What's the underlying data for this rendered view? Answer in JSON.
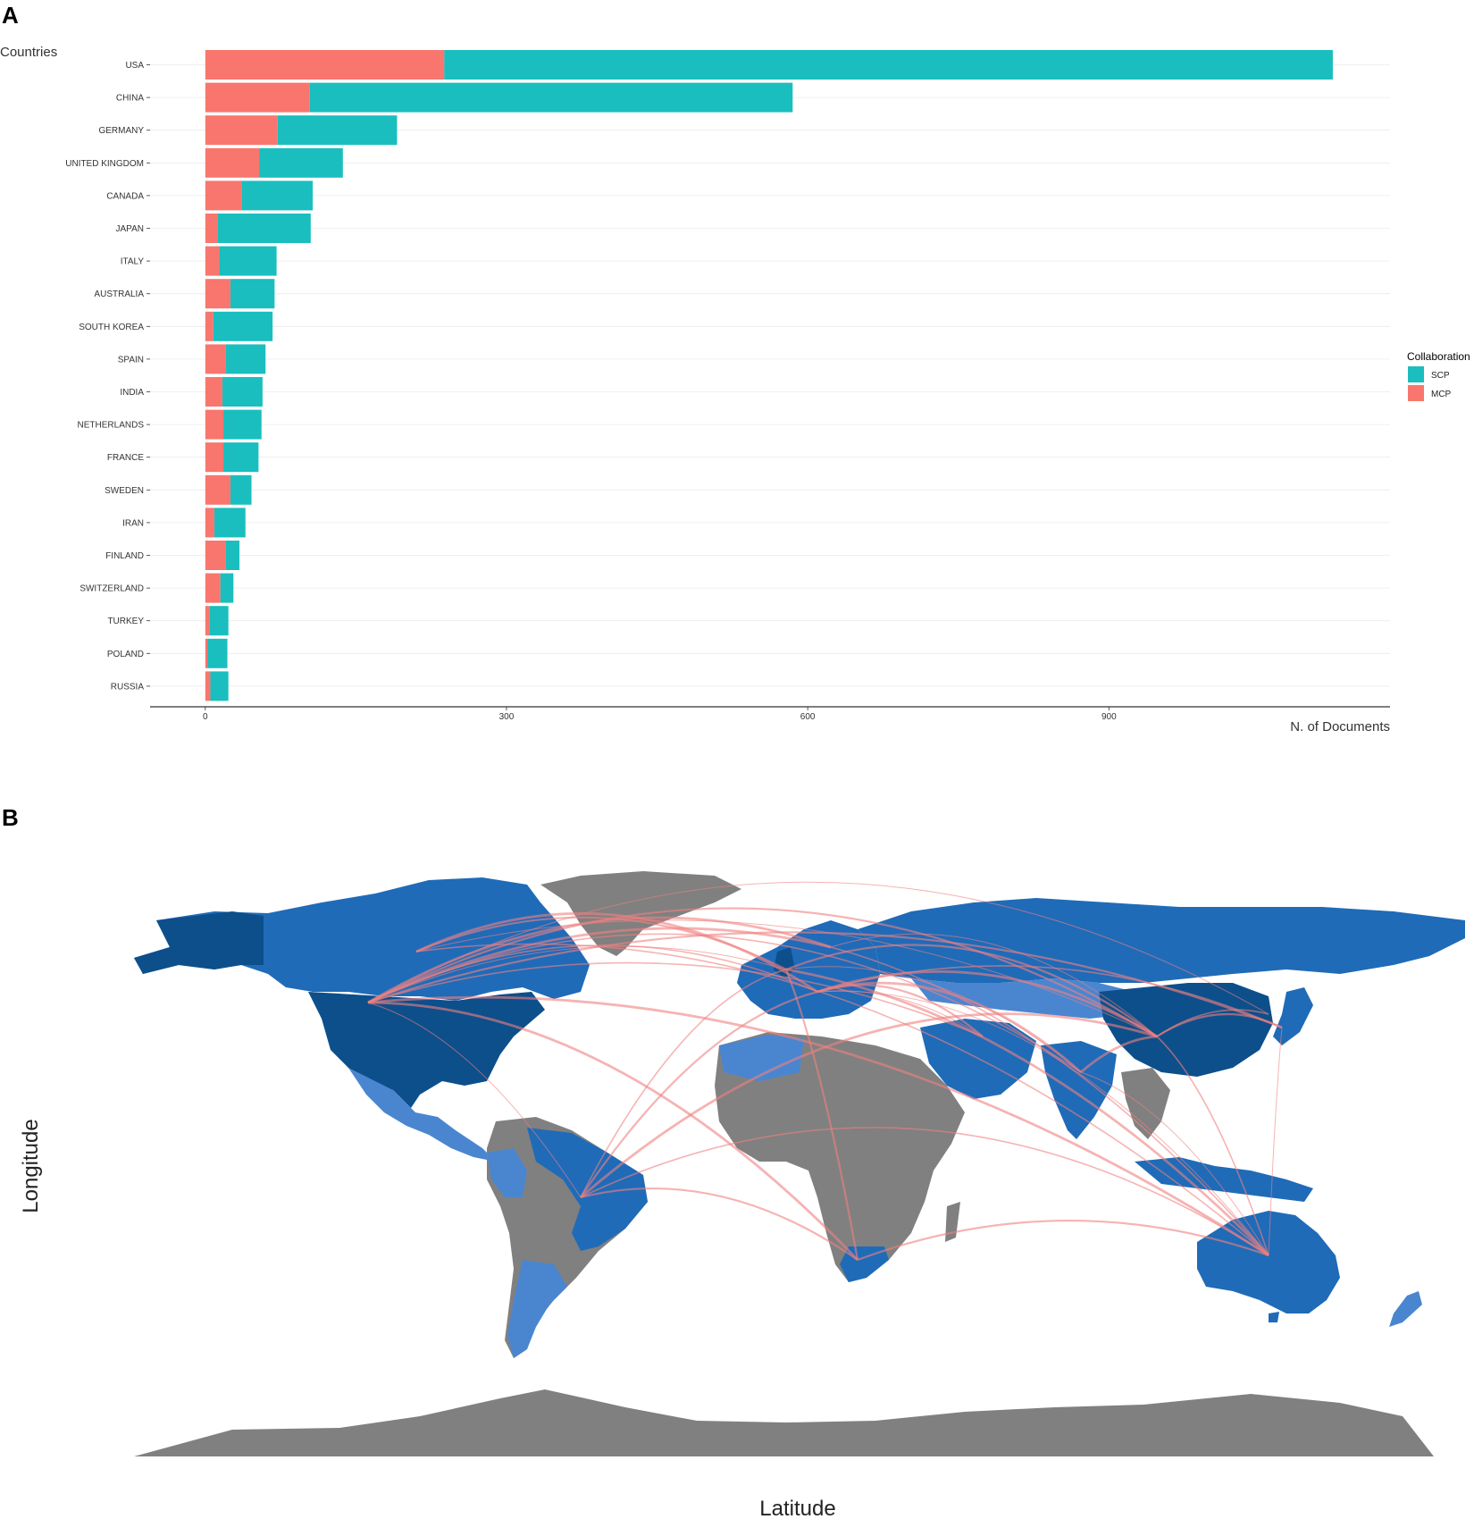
{
  "panel_a": {
    "letter": "A"
  },
  "panel_b": {
    "letter": "B"
  },
  "chart_data": [
    {
      "type": "bar",
      "orientation": "horizontal",
      "stacked": true,
      "ylabel": "Countries",
      "xlabel": "N. of Documents",
      "categories": [
        "USA",
        "CHINA",
        "GERMANY",
        "UNITED KINGDOM",
        "CANADA",
        "JAPAN",
        "ITALY",
        "AUSTRALIA",
        "SOUTH KOREA",
        "SPAIN",
        "INDIA",
        "NETHERLANDS",
        "FRANCE",
        "SWEDEN",
        "IRAN",
        "FINLAND",
        "SWITZERLAND",
        "TURKEY",
        "POLAND",
        "RUSSIA"
      ],
      "series": [
        {
          "name": "MCP",
          "color": "#F8766D",
          "values": [
            238,
            104,
            72,
            54,
            36,
            12,
            14,
            25,
            8,
            20,
            17,
            18,
            18,
            25,
            9,
            20,
            15,
            4,
            2,
            5
          ]
        },
        {
          "name": "SCP",
          "color": "#1ABEBF",
          "values": [
            885,
            481,
            119,
            83,
            71,
            93,
            57,
            44,
            59,
            40,
            40,
            38,
            35,
            21,
            31,
            14,
            13,
            19,
            20,
            18
          ]
        }
      ],
      "xlim": [
        -55,
        1180
      ],
      "xticks": [
        0,
        300,
        600,
        900
      ],
      "legend": {
        "title": "Collaboration",
        "placement": "right",
        "order": [
          "SCP",
          "MCP"
        ]
      },
      "grid": true
    },
    {
      "type": "map",
      "xlabel": "Latitude",
      "ylabel": "Longitude",
      "description_colors": {
        "high": "#0D4F8B",
        "mid": "#1F6BB8",
        "low": "#4A86D0",
        "none": "#808080",
        "links": "#F08080"
      },
      "hubs": [
        "USA",
        "CHINA",
        "UNITED KINGDOM",
        "AUSTRALIA",
        "BRAZIL",
        "JAPAN",
        "INDIA",
        "SOUTH AFRICA"
      ]
    }
  ]
}
